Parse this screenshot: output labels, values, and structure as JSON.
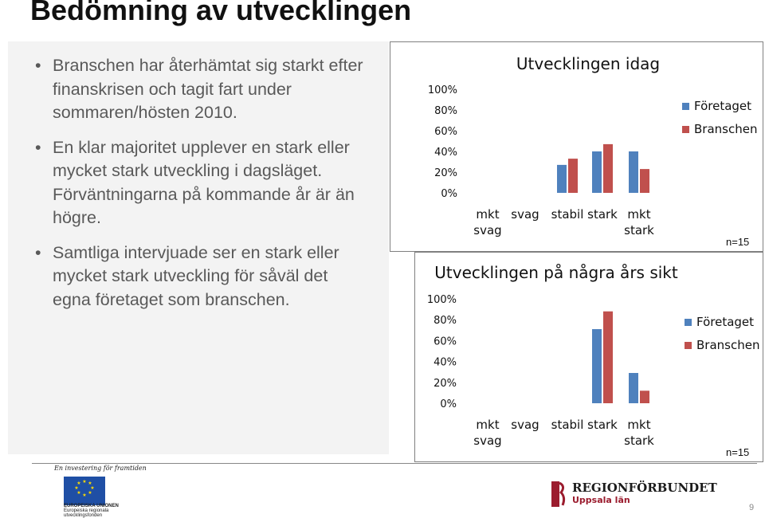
{
  "slide": {
    "title": "Bedömning av utvecklingen",
    "bullets": [
      "Branschen har återhämtat sig starkt efter finanskrisen och tagit fart under sommaren/hösten 2010.",
      "En klar majoritet upplever en stark eller mycket stark utveckling i dagsläget. Förväntningarna på kommande år är än högre.",
      "Samtliga intervjuade ser en stark eller mycket stark utveckling för såväl det egna företaget som branschen."
    ],
    "footer": {
      "eu_tagline": "En investering för framtiden",
      "eu_text": [
        "EUROPEISKA UNIONEN",
        "Europeiska regionala",
        "utvecklingsfonden"
      ],
      "org_name": "REGIONFÖRBUNDET",
      "org_sub": "Uppsala län",
      "page_number": "9"
    }
  },
  "colors": {
    "foretaget": "#4f81bd",
    "branschen": "#c0504d",
    "panel_bg": "#f3f3f3"
  },
  "chart_data": [
    {
      "type": "bar",
      "title": "Utvecklingen idag",
      "categories": [
        "mkt svag",
        "svag",
        "stabil",
        "stark",
        "mkt stark"
      ],
      "category_lines": [
        [
          "mkt",
          "svag"
        ],
        [
          "svag"
        ],
        [
          "stabil"
        ],
        [
          "stark"
        ],
        [
          "mkt",
          "stark"
        ]
      ],
      "series": [
        {
          "name": "Företaget",
          "values": [
            0,
            0,
            27,
            40,
            40
          ]
        },
        {
          "name": "Branschen",
          "values": [
            0,
            0,
            33,
            47,
            23
          ]
        }
      ],
      "ylim": [
        0,
        100
      ],
      "yticks": [
        "0%",
        "20%",
        "40%",
        "60%",
        "80%",
        "100%"
      ],
      "grid": false,
      "legend": "right",
      "note": "n=15"
    },
    {
      "type": "bar",
      "title": "Utvecklingen på några års sikt",
      "categories": [
        "mkt svag",
        "svag",
        "stabil",
        "stark",
        "mkt stark"
      ],
      "category_lines": [
        [
          "mkt",
          "svag"
        ],
        [
          "svag"
        ],
        [
          "stabil"
        ],
        [
          "stark"
        ],
        [
          "mkt",
          "stark"
        ]
      ],
      "series": [
        {
          "name": "Företaget",
          "values": [
            0,
            0,
            0,
            71,
            29
          ]
        },
        {
          "name": "Branschen",
          "values": [
            0,
            0,
            0,
            88,
            12
          ]
        }
      ],
      "ylim": [
        0,
        100
      ],
      "yticks": [
        "0%",
        "20%",
        "40%",
        "60%",
        "80%",
        "100%"
      ],
      "grid": false,
      "legend": "right",
      "note": "n=15"
    }
  ]
}
